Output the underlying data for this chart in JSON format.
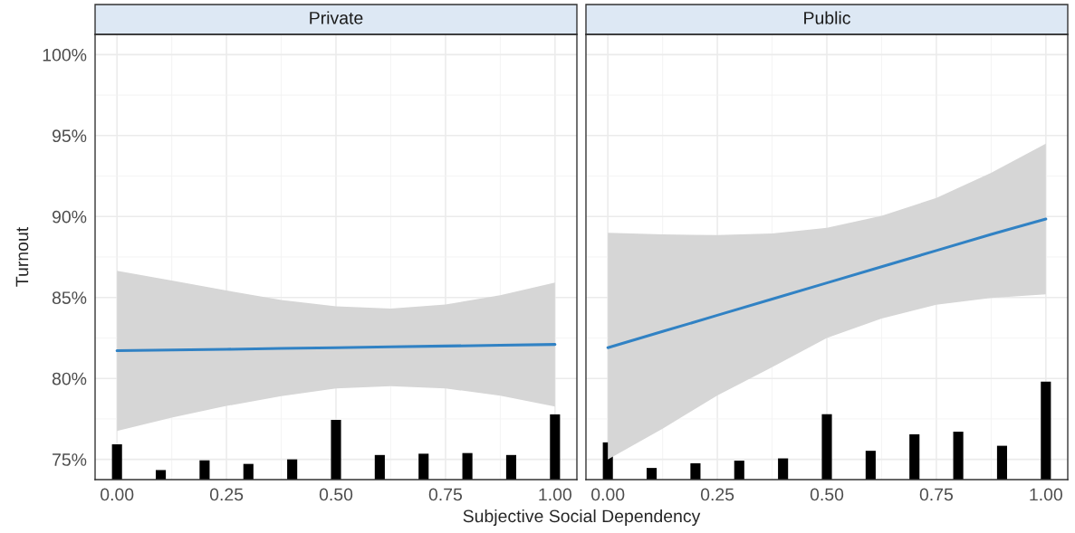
{
  "chart_data": [
    {
      "type": "line",
      "title": "Private",
      "xlabel": "Subjective Social Dependency",
      "ylabel": "Turnout",
      "xlim": [
        -0.05,
        1.05
      ],
      "xticks": [
        {
          "value": 0,
          "label": "0.00"
        },
        {
          "value": 0.25,
          "label": "0.25"
        },
        {
          "value": 0.5,
          "label": "0.50"
        },
        {
          "value": 0.75,
          "label": "0.75"
        },
        {
          "value": 1,
          "label": "1.00"
        }
      ],
      "ylim": [
        73.75,
        101.25
      ],
      "yticks": [
        {
          "value": 75,
          "label": "75%"
        },
        {
          "value": 80,
          "label": "80%"
        },
        {
          "value": 85,
          "label": "85%"
        },
        {
          "value": 90,
          "label": "90%"
        },
        {
          "value": 95,
          "label": "95%"
        },
        {
          "value": 100,
          "label": "100%"
        }
      ],
      "grid": true,
      "series": [
        {
          "type": "bar",
          "color": "#000000",
          "x": [
            0,
            0.1,
            0.2,
            0.3,
            0.4,
            0.5,
            0.6,
            0.7,
            0.8,
            0.9,
            1.0
          ],
          "base": [
            73.75,
            73.75,
            73.75,
            73.75,
            73.75,
            73.75,
            73.75,
            73.75,
            73.75,
            73.75,
            73.75
          ],
          "values": [
            2.18,
            0.59,
            1.19,
            0.97,
            1.25,
            3.69,
            1.52,
            1.6,
            1.64,
            1.52,
            4.03
          ]
        },
        {
          "color": "#3182c4",
          "x": [
            0,
            0.125,
            0.25,
            0.375,
            0.5,
            0.625,
            0.75,
            0.875,
            1.0
          ],
          "values": [
            81.71,
            81.76,
            81.8,
            81.85,
            81.9,
            81.95,
            82.0,
            82.05,
            82.1
          ],
          "lower": [
            76.76,
            77.58,
            78.3,
            78.9,
            79.38,
            79.52,
            79.38,
            78.94,
            78.26
          ],
          "upper": [
            86.65,
            86.05,
            85.43,
            84.85,
            84.46,
            84.32,
            84.56,
            85.14,
            85.92
          ]
        }
      ]
    },
    {
      "type": "line",
      "title": "Public",
      "tick_labels": "x",
      "xlim": [
        -0.05,
        1.05
      ],
      "xticks": [
        {
          "value": 0,
          "label": "0.00"
        },
        {
          "value": 0.25,
          "label": "0.25"
        },
        {
          "value": 0.5,
          "label": "0.50"
        },
        {
          "value": 0.75,
          "label": "0.75"
        },
        {
          "value": 1,
          "label": "1.00"
        }
      ],
      "ylim": [
        73.75,
        101.25
      ],
      "yticks": [
        {
          "value": 75,
          "label": null
        },
        {
          "value": 80,
          "label": null
        },
        {
          "value": 85,
          "label": null
        },
        {
          "value": 90,
          "label": null
        },
        {
          "value": 95,
          "label": null
        },
        {
          "value": 100,
          "label": null
        }
      ],
      "grid": true,
      "series": [
        {
          "type": "bar",
          "color": "#000000",
          "x": [
            0,
            0.1,
            0.2,
            0.3,
            0.4,
            0.5,
            0.6,
            0.7,
            0.8,
            0.9,
            1.0
          ],
          "base": [
            73.75,
            73.75,
            73.75,
            73.75,
            73.75,
            73.75,
            73.75,
            73.75,
            73.75,
            73.75,
            73.75
          ],
          "values": [
            2.3,
            0.72,
            1.01,
            1.17,
            1.31,
            4.04,
            1.78,
            2.8,
            2.96,
            2.09,
            6.05
          ]
        },
        {
          "color": "#3182c4",
          "x": [
            0,
            0.125,
            0.25,
            0.375,
            0.5,
            0.625,
            0.75,
            0.875,
            1.0
          ],
          "values": [
            81.9,
            82.9,
            83.9,
            84.9,
            85.9,
            86.9,
            87.9,
            88.9,
            89.85
          ],
          "lower": [
            75.0,
            76.9,
            78.95,
            80.7,
            82.5,
            83.7,
            84.55,
            84.97,
            85.2
          ],
          "upper": [
            89.0,
            88.9,
            88.85,
            88.95,
            89.3,
            90.04,
            91.15,
            92.7,
            94.5
          ]
        }
      ]
    }
  ]
}
